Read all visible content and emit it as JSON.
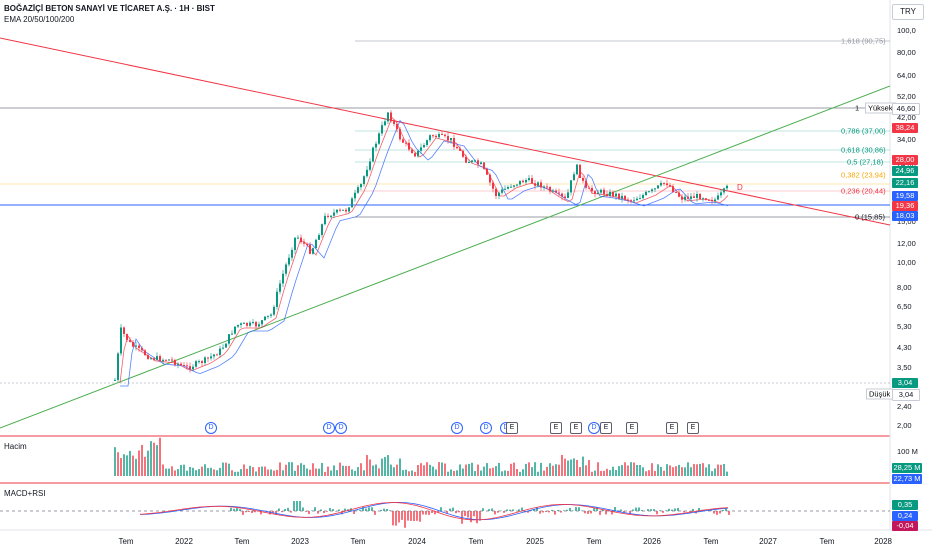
{
  "header": {
    "title": "BOĞAZİÇİ BETON SANAYİ VE TİCARET A.Ş. · 1H · BIST",
    "indicators": "EMA 20/50/100/200",
    "currency": "TRY"
  },
  "price_axis": [
    "100,0",
    "80,00",
    "64,00",
    "52,00",
    "42,00",
    "34,00",
    "24,00",
    "15,00",
    "12,00",
    "10,00",
    "8,00",
    "6,50",
    "5,30",
    "4,30",
    "3,50",
    "2,40",
    "2,00"
  ],
  "fib_levels": [
    {
      "label": "1,618 (90,75)",
      "color": "#9598a1"
    },
    {
      "label": "1",
      "color": "#131722"
    },
    {
      "label": "0,786 (37,00)",
      "color": "#089981"
    },
    {
      "label": "0,618 (30,86)",
      "color": "#089981"
    },
    {
      "label": "0,5 (27,18)",
      "color": "#089981"
    },
    {
      "label": "0,382 (23,94)",
      "color": "#f7a600"
    },
    {
      "label": "0,236 (20,44)",
      "color": "#f23645"
    },
    {
      "label": "0 (15,85)",
      "color": "#131722"
    }
  ],
  "high_label": "Yüksek",
  "low_label": "Düşük",
  "badges": [
    {
      "text": "46,60",
      "bg": "#ffffff",
      "fg": "#131722"
    },
    {
      "text": "38,24",
      "bg": "#f23645",
      "fg": "#ffffff"
    },
    {
      "text": "28,00",
      "bg": "#f23645",
      "fg": "#ffffff"
    },
    {
      "text": "24,96",
      "bg": "#089981",
      "fg": "#ffffff"
    },
    {
      "text": "22,16",
      "bg": "#089981",
      "fg": "#ffffff"
    },
    {
      "text": "19,58",
      "bg": "#2962ff",
      "fg": "#ffffff"
    },
    {
      "text": "19,36",
      "bg": "#f23645",
      "fg": "#ffffff"
    },
    {
      "text": "18,03",
      "bg": "#2962ff",
      "fg": "#ffffff"
    },
    {
      "text": "3,04",
      "bg": "#089981",
      "fg": "#ffffff"
    },
    {
      "text": "3,04",
      "bg": "#ffffff",
      "fg": "#131722"
    }
  ],
  "triangle_marker": "D",
  "events": [
    "D",
    "D",
    "D",
    "D",
    "D",
    "D",
    "E",
    "E",
    "E",
    "D",
    "E",
    "E",
    "E",
    "E"
  ],
  "volume": {
    "label": "Hacim",
    "axis": "100 M",
    "badges": [
      {
        "text": "28,25 M",
        "bg": "#089981"
      },
      {
        "text": "22,73 M",
        "bg": "#2962ff"
      }
    ]
  },
  "macd": {
    "label": "MACD+RSI",
    "badges": [
      {
        "text": "0,35",
        "bg": "#089981"
      },
      {
        "text": "0,24",
        "bg": "#2962ff"
      },
      {
        "text": "-0,04",
        "bg": "#c2185b"
      }
    ]
  },
  "time_axis": [
    "Tem",
    "2022",
    "Tem",
    "2023",
    "Tem",
    "2024",
    "Tem",
    "2025",
    "Tem",
    "2026",
    "Tem",
    "2027",
    "Tem",
    "2028"
  ],
  "colors": {
    "up": "#089981",
    "down": "#f23645",
    "resistance": "#f23645",
    "support": "#4caf50",
    "ema_fast": "#f23645",
    "ema_slow": "#2962ff"
  }
}
